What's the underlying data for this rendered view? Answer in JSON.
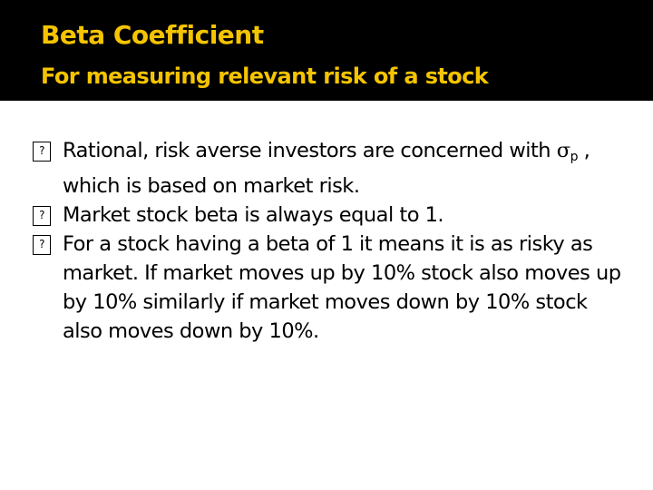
{
  "slide": {
    "title": "Beta Coefficient",
    "subtitle": "For measuring relevant risk of a stock",
    "colors": {
      "title_bar": "#000000",
      "title_text": "#f5c400",
      "body_text": "#000000",
      "background": "#ffffff"
    },
    "bullet_icon": "missing-glyph-box",
    "bullets": [
      {
        "pre": "Rational, risk averse investors are concerned with ",
        "symbol": "σ",
        "symbol_sub": "p",
        "post": " , which is based on market risk."
      },
      {
        "text": "Market stock beta is always equal to 1."
      },
      {
        "text": "For a stock having a beta of 1 it means it is as risky as market. If market moves up by 10% stock also moves up by 10% similarly if market moves down by 10% stock also moves down by 10%."
      }
    ]
  }
}
